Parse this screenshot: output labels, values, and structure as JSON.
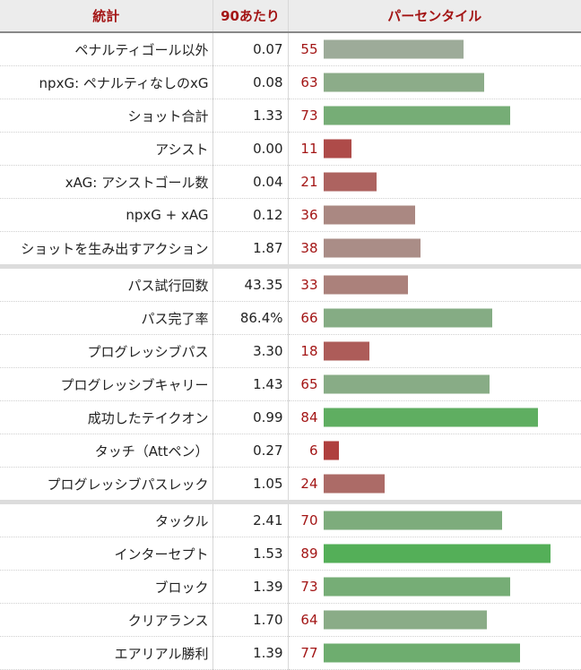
{
  "headers": {
    "stat": "統計",
    "per90": "90あたり",
    "percentile": "パーセンタイル"
  },
  "colors": {
    "low": "#b03030",
    "mid": "#a8aaa2",
    "high": "#3cb043",
    "header_text": "#a31515"
  },
  "groups": [
    [
      {
        "stat": "ペナルティゴール以外",
        "per90": "0.07",
        "percentile": 55
      },
      {
        "stat": "npxG: ペナルティなしのxG",
        "per90": "0.08",
        "percentile": 63
      },
      {
        "stat": "ショット合計",
        "per90": "1.33",
        "percentile": 73
      },
      {
        "stat": "アシスト",
        "per90": "0.00",
        "percentile": 11
      },
      {
        "stat": "xAG: アシストゴール数",
        "per90": "0.04",
        "percentile": 21
      },
      {
        "stat": "npxG + xAG",
        "per90": "0.12",
        "percentile": 36
      },
      {
        "stat": "ショットを生み出すアクション",
        "per90": "1.87",
        "percentile": 38
      }
    ],
    [
      {
        "stat": "パス試行回数",
        "per90": "43.35",
        "percentile": 33
      },
      {
        "stat": "パス完了率",
        "per90": "86.4%",
        "percentile": 66
      },
      {
        "stat": "プログレッシブパス",
        "per90": "3.30",
        "percentile": 18
      },
      {
        "stat": "プログレッシブキャリー",
        "per90": "1.43",
        "percentile": 65
      },
      {
        "stat": "成功したテイクオン",
        "per90": "0.99",
        "percentile": 84
      },
      {
        "stat": "タッチ（Attペン）",
        "per90": "0.27",
        "percentile": 6
      },
      {
        "stat": "プログレッシブパスレック",
        "per90": "1.05",
        "percentile": 24
      }
    ],
    [
      {
        "stat": "タックル",
        "per90": "2.41",
        "percentile": 70
      },
      {
        "stat": "インターセプト",
        "per90": "1.53",
        "percentile": 89
      },
      {
        "stat": "ブロック",
        "per90": "1.39",
        "percentile": 73
      },
      {
        "stat": "クリアランス",
        "per90": "1.70",
        "percentile": 64
      },
      {
        "stat": "エアリアル勝利",
        "per90": "1.39",
        "percentile": 77
      }
    ]
  ]
}
